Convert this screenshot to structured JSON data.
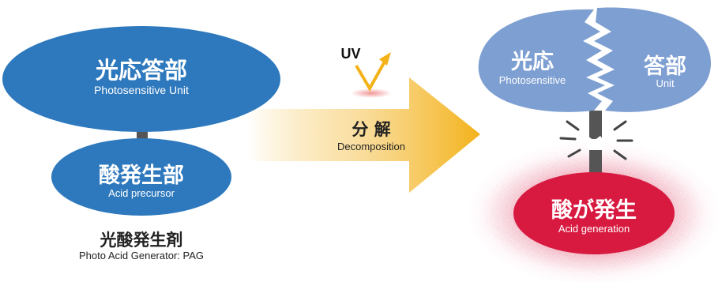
{
  "left": {
    "top_ellipse": {
      "jp": "光応答部",
      "en": "Photosensitive Unit"
    },
    "bottom_ellipse": {
      "jp": "酸発生部",
      "en": "Acid precursor"
    },
    "caption": {
      "jp": "光酸発生剤",
      "en": "Photo Acid Generator: PAG"
    }
  },
  "arrow": {
    "jp": "分 解",
    "en": "Decomposition",
    "uv": "UV"
  },
  "right": {
    "left_half": {
      "jp": "光応",
      "en": "Photosensitive"
    },
    "right_half": {
      "jp": "答部",
      "en": "Unit"
    },
    "acid": {
      "jp": "酸が発生",
      "en": "Acid generation"
    }
  },
  "colors": {
    "blue": "#2e79bd",
    "light_blue": "#7e9fd2",
    "red": "#d81a40",
    "arrow_yellow": "#f3b21a",
    "stem": "#555555"
  }
}
